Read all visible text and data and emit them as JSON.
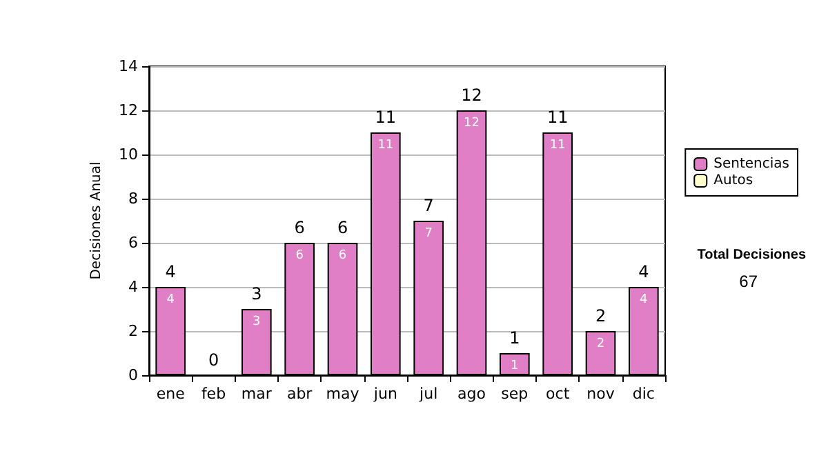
{
  "chart_data": {
    "type": "bar",
    "ylabel": "Decisiones Anual",
    "categories": [
      "ene",
      "feb",
      "mar",
      "abr",
      "may",
      "jun",
      "jul",
      "ago",
      "sep",
      "oct",
      "nov",
      "dic"
    ],
    "series": [
      {
        "name": "Sentencias",
        "color": "#e07fc6",
        "values": [
          4,
          0,
          3,
          6,
          6,
          11,
          7,
          12,
          1,
          11,
          2,
          4
        ],
        "value_labels": [
          "4",
          null,
          "3",
          "6",
          "6",
          "11",
          "7",
          "12",
          "1",
          "11",
          "2",
          "4"
        ]
      },
      {
        "name": "Autos",
        "color": "#ffffcc",
        "values": [
          0,
          0,
          0,
          0,
          0,
          0,
          0,
          0,
          0,
          0,
          0,
          0
        ]
      }
    ],
    "stacked": true,
    "totals": [
      "4",
      "0",
      "3",
      "6",
      "6",
      "11",
      "7",
      "12",
      "1",
      "11",
      "2",
      "4"
    ],
    "ylim": [
      0,
      14
    ],
    "yticks": [
      0,
      2,
      4,
      6,
      8,
      10,
      12,
      14
    ],
    "grid": "y",
    "legend": "right",
    "annotations": [
      "Total Decisiones",
      "67"
    ]
  }
}
